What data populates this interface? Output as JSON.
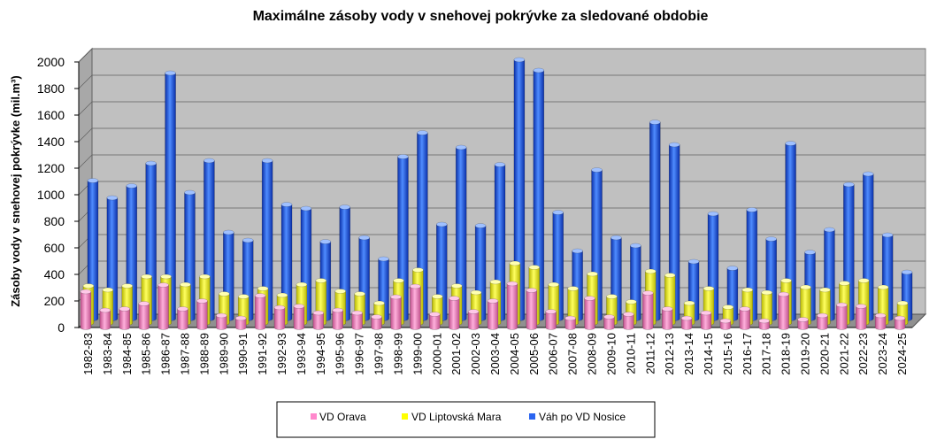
{
  "chart_data": {
    "type": "bar",
    "title": "Maximálne zásoby vody v snehovej pokrývke za sledované obdobie",
    "ylabel": "Zásoby vody v snehovej pokrývke (mil.m³)",
    "xlabel": "",
    "ylim": [
      0,
      2000
    ],
    "yticks": [
      "0",
      "200",
      "400",
      "600",
      "800",
      "1000",
      "1200",
      "1400",
      "1600",
      "1800",
      "2000"
    ],
    "grid": true,
    "legend_position": "bottom",
    "categories": [
      "1982-83",
      "1983-84",
      "1984-85",
      "1985-86",
      "1986-87",
      "1987-88",
      "1988-89",
      "1989-90",
      "1990-91",
      "1991-92",
      "1992-93",
      "1993-94",
      "1994-95",
      "1995-96",
      "1996-97",
      "1997-98",
      "1998-99",
      "1999-00",
      "2000-01",
      "2001-02",
      "2002-03",
      "2003-04",
      "2004-05",
      "2005-06",
      "2006-07",
      "2007-08",
      "2008-09",
      "2009-10",
      "2010-11",
      "2011-12",
      "2012-13",
      "2013-14",
      "2014-15",
      "2015-16",
      "2016-17",
      "2017-18",
      "2018-19",
      "2019-20",
      "2020-21",
      "2021-22",
      "2022-23",
      "2023-24",
      "2024-25"
    ],
    "series": [
      {
        "name": "VD Orava",
        "color": "#ff88cc",
        "values": [
          270,
          130,
          140,
          180,
          320,
          140,
          200,
          90,
          70,
          240,
          150,
          160,
          110,
          130,
          110,
          80,
          230,
          310,
          100,
          220,
          120,
          200,
          330,
          280,
          120,
          70,
          220,
          80,
          100,
          260,
          140,
          70,
          110,
          50,
          140,
          50,
          250,
          60,
          90,
          170,
          160,
          90,
          70
        ]
      },
      {
        "name": "VD Liptovská Mara",
        "color": "#ffff00",
        "values": [
          280,
          250,
          280,
          350,
          350,
          290,
          350,
          220,
          200,
          260,
          210,
          290,
          320,
          240,
          220,
          150,
          320,
          400,
          200,
          280,
          230,
          310,
          450,
          420,
          290,
          260,
          370,
          200,
          160,
          390,
          360,
          150,
          260,
          120,
          250,
          230,
          320,
          270,
          250,
          300,
          320,
          270,
          150
        ]
      },
      {
        "name": "Váh po VD Nosice",
        "color": "#2a64f0",
        "values": [
          1040,
          910,
          1000,
          1170,
          1850,
          950,
          1190,
          650,
          590,
          1190,
          860,
          830,
          580,
          840,
          610,
          450,
          1220,
          1400,
          710,
          1290,
          700,
          1160,
          1950,
          1870,
          800,
          510,
          1120,
          610,
          550,
          1480,
          1310,
          430,
          790,
          380,
          820,
          600,
          1320,
          500,
          670,
          1010,
          1090,
          630,
          350
        ]
      }
    ]
  }
}
